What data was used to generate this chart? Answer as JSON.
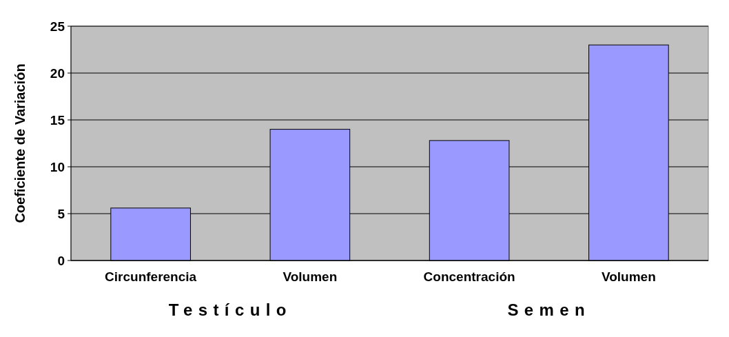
{
  "chart_data": {
    "type": "bar",
    "ylabel": "Coeficiente de Variación",
    "categories": [
      "Circunferencia",
      "Volumen",
      "Concentración",
      "Volumen"
    ],
    "values": [
      5.6,
      14,
      12.8,
      23
    ],
    "color": "#9999ff",
    "ylim": [
      0,
      25
    ],
    "yticks": [
      0,
      5,
      10,
      15,
      20,
      25
    ],
    "grid": "y",
    "annotations": [
      "Testículo",
      "Semen"
    ]
  }
}
